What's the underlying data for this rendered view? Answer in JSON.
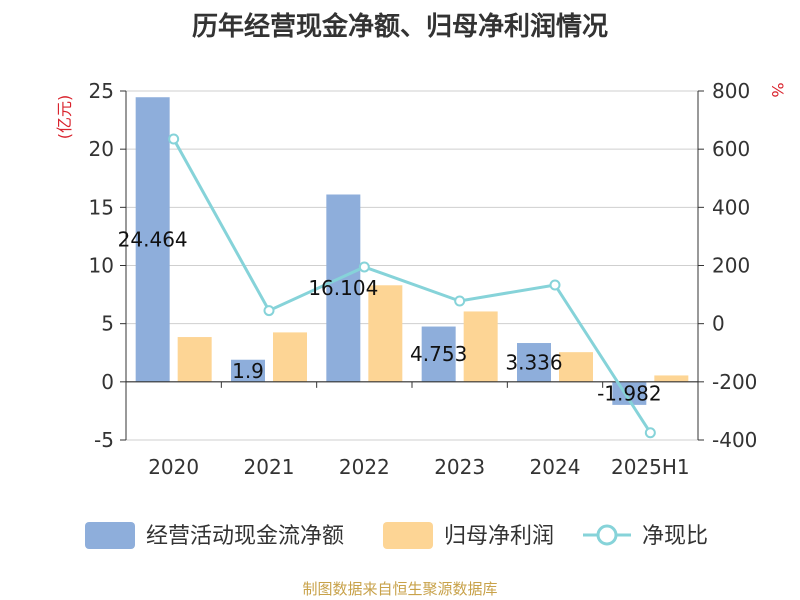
{
  "title": "历年经营现金净额、归母净利润情况",
  "source": "制图数据来自恒生聚源数据库",
  "chart_data": {
    "type": "bar",
    "categories": [
      "2020",
      "2021",
      "2022",
      "2023",
      "2024",
      "2025H1"
    ],
    "left_axis": {
      "unit": "(亿元)",
      "ylim": [
        -5,
        25
      ],
      "ticks": [
        "25",
        "20",
        "15",
        "10",
        "5",
        "0",
        "-5"
      ]
    },
    "right_axis": {
      "unit": "%",
      "ylim": [
        -400,
        800
      ],
      "ticks": [
        "800",
        "600",
        "400",
        "200",
        "0",
        "-200",
        "-400"
      ]
    },
    "series": [
      {
        "name": "经营活动现金流净额",
        "type": "bar",
        "axis": "left",
        "color": "#8eaedb",
        "values": [
          24.464,
          1.9,
          16.104,
          4.753,
          3.336,
          -1.982
        ],
        "labels": [
          "24.464",
          "1.9",
          "16.104",
          "4.753",
          "3.336",
          "-1.982"
        ]
      },
      {
        "name": "归母净利润",
        "type": "bar",
        "axis": "left",
        "color": "#fdd595",
        "values": [
          3.85,
          4.25,
          8.3,
          6.05,
          2.55,
          0.55
        ]
      },
      {
        "name": "净现比",
        "type": "line",
        "axis": "right",
        "color": "#86d3d9",
        "values": [
          635,
          45,
          195,
          78,
          133,
          -375
        ]
      }
    ],
    "grid": true,
    "legend": "bottom"
  }
}
